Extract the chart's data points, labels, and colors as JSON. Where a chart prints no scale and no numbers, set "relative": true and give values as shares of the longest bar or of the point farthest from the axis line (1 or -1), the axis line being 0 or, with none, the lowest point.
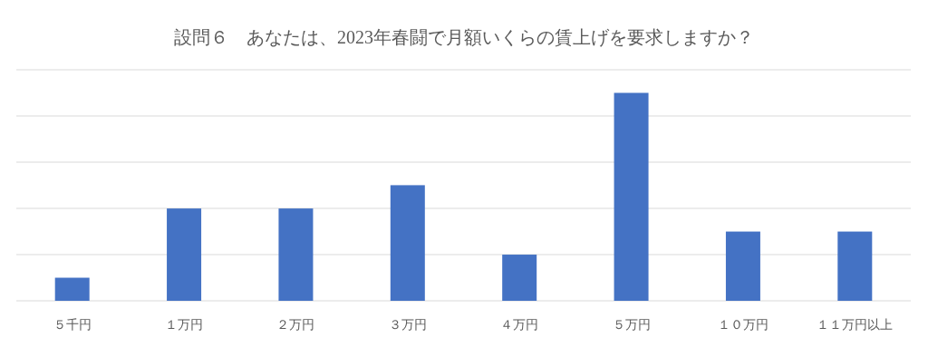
{
  "chart_data": {
    "type": "bar",
    "title": "設問６　あなたは、2023年春闘で月額いくらの賃上げを要求しますか？",
    "categories": [
      "５千円",
      "１万円",
      "２万円",
      "３万円",
      "４万円",
      "５万円",
      "１０万円",
      "１１万円以上"
    ],
    "values": [
      0.111,
      0.444,
      0.444,
      0.556,
      0.222,
      1,
      0.333,
      0.333
    ],
    "color": "#4472c4",
    "relative": true,
    "grid": true
  }
}
